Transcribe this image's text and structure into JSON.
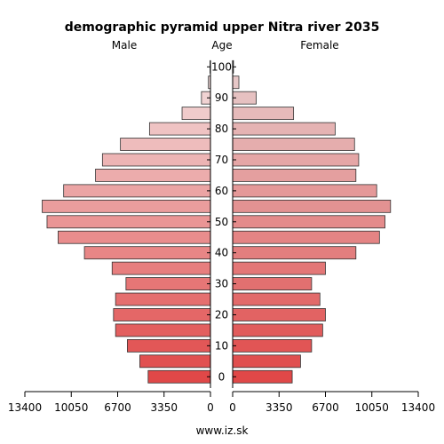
{
  "chart_data": {
    "type": "bar",
    "orientation": "horizontal-pyramid",
    "title": "demographic pyramid upper Nitra river 2035",
    "left_label": "Male",
    "center_label": "Age",
    "right_label": "Female",
    "footer": "www.iz.sk",
    "xlim": [
      0,
      13400
    ],
    "x_ticks": [
      {
        "value": 13400,
        "label": "13400"
      },
      {
        "value": 10050,
        "label": "10050"
      },
      {
        "value": 6700,
        "label": "6700"
      },
      {
        "value": 3350,
        "label": "3350"
      },
      {
        "value": 0,
        "label": "0"
      }
    ],
    "age_ticks": [
      "0",
      "10",
      "20",
      "30",
      "40",
      "50",
      "60",
      "70",
      "80",
      "90",
      "100"
    ],
    "categories": [
      "0-4",
      "5-9",
      "10-14",
      "15-19",
      "20-24",
      "25-29",
      "30-34",
      "35-39",
      "40-44",
      "45-49",
      "50-54",
      "55-59",
      "60-64",
      "65-69",
      "70-74",
      "75-79",
      "80-84",
      "85-89",
      "90-94",
      "95-99",
      "100+"
    ],
    "series": [
      {
        "name": "Male",
        "values": [
          4500,
          5100,
          6000,
          6850,
          7000,
          6850,
          6100,
          7100,
          9100,
          11000,
          11800,
          12150,
          10600,
          8300,
          7800,
          6500,
          4400,
          2050,
          650,
          150,
          30
        ]
      },
      {
        "name": "Female",
        "values": [
          4300,
          4900,
          5700,
          6500,
          6700,
          6300,
          5700,
          6700,
          8900,
          10600,
          11000,
          11400,
          10400,
          8900,
          9100,
          8800,
          7400,
          4400,
          1700,
          450,
          60
        ]
      }
    ],
    "colors": {
      "bottom": "#e04848",
      "top": "#f3e2e2"
    }
  }
}
